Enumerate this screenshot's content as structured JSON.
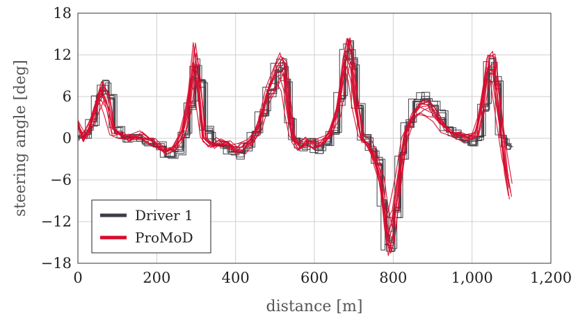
{
  "chart_data": {
    "type": "line",
    "xlabel": "distance [m]",
    "ylabel": "steering angle [deg]",
    "xlim": [
      0,
      1200
    ],
    "ylim": [
      -18,
      18
    ],
    "x_ticks": [
      "0",
      "200",
      "400",
      "600",
      "800",
      "1,000",
      "1,200"
    ],
    "x_tick_values": [
      0,
      200,
      400,
      600,
      800,
      1000,
      1200
    ],
    "y_ticks": [
      "−18",
      "−12",
      "−6",
      "0",
      "6",
      "12",
      "18"
    ],
    "y_tick_values": [
      -18,
      -12,
      -6,
      0,
      6,
      12,
      18
    ],
    "grid": true,
    "legend_position": "bottom-left",
    "series": [
      {
        "name": "Driver 1",
        "color": "#3d3d45",
        "style": "stepped",
        "traces": 8,
        "x": [
          0,
          15,
          30,
          45,
          60,
          75,
          90,
          110,
          130,
          160,
          190,
          220,
          245,
          265,
          280,
          295,
          305,
          320,
          340,
          360,
          380,
          400,
          420,
          440,
          460,
          480,
          500,
          515,
          525,
          535,
          545,
          560,
          580,
          600,
          620,
          640,
          660,
          675,
          685,
          695,
          705,
          720,
          740,
          755,
          770,
          780,
          790,
          800,
          815,
          830,
          850,
          870,
          890,
          910,
          930,
          950,
          970,
          990,
          1010,
          1025,
          1040,
          1055,
          1070,
          1085,
          1095
        ],
        "y": [
          0,
          0.5,
          2,
          5,
          6.5,
          5,
          1,
          0,
          0,
          -0.5,
          -1,
          -2,
          -1.5,
          0.5,
          4,
          9,
          7,
          1,
          -0.5,
          -1,
          -1.5,
          -2,
          -1,
          0.5,
          3,
          6,
          8.5,
          9,
          7,
          2,
          -0.5,
          -1,
          -0.5,
          -1.5,
          -0.5,
          1,
          5,
          10.5,
          11,
          9,
          4,
          0,
          -1.5,
          -3,
          -8,
          -13,
          -13,
          -9,
          -2,
          2,
          4.5,
          5,
          4,
          3,
          1,
          0.5,
          0,
          -0.5,
          0,
          4,
          9,
          7,
          0,
          -1,
          -1
        ]
      },
      {
        "name": "ProMoD",
        "color": "#d90a2c",
        "style": "smooth",
        "traces": 10,
        "x": [
          0,
          15,
          30,
          45,
          60,
          75,
          90,
          110,
          130,
          160,
          190,
          220,
          245,
          265,
          280,
          295,
          305,
          320,
          340,
          360,
          380,
          400,
          420,
          440,
          460,
          480,
          500,
          515,
          525,
          535,
          545,
          560,
          580,
          600,
          620,
          640,
          660,
          675,
          685,
          695,
          705,
          720,
          740,
          755,
          770,
          780,
          790,
          800,
          815,
          830,
          850,
          870,
          890,
          910,
          930,
          950,
          970,
          990,
          1010,
          1025,
          1040,
          1055,
          1070,
          1085,
          1095
        ],
        "y": [
          2,
          0,
          1.5,
          4,
          6.5,
          5,
          1,
          0.5,
          0,
          0.5,
          -0.5,
          -1.5,
          -1.5,
          0.5,
          4,
          11,
          8,
          0,
          -1,
          -0.5,
          -1,
          -1.5,
          -1.5,
          -0.5,
          2,
          6,
          8.5,
          10,
          9,
          4,
          0,
          -1,
          -0.5,
          -1,
          -0.5,
          0.5,
          4,
          10,
          12,
          10,
          5,
          0,
          -1,
          -3,
          -6,
          -11,
          -14,
          -12,
          -6,
          0,
          3,
          4.5,
          4.5,
          3,
          1.5,
          0.5,
          0.5,
          0,
          0.5,
          4,
          10,
          10,
          3,
          -4,
          -7
        ]
      }
    ]
  }
}
